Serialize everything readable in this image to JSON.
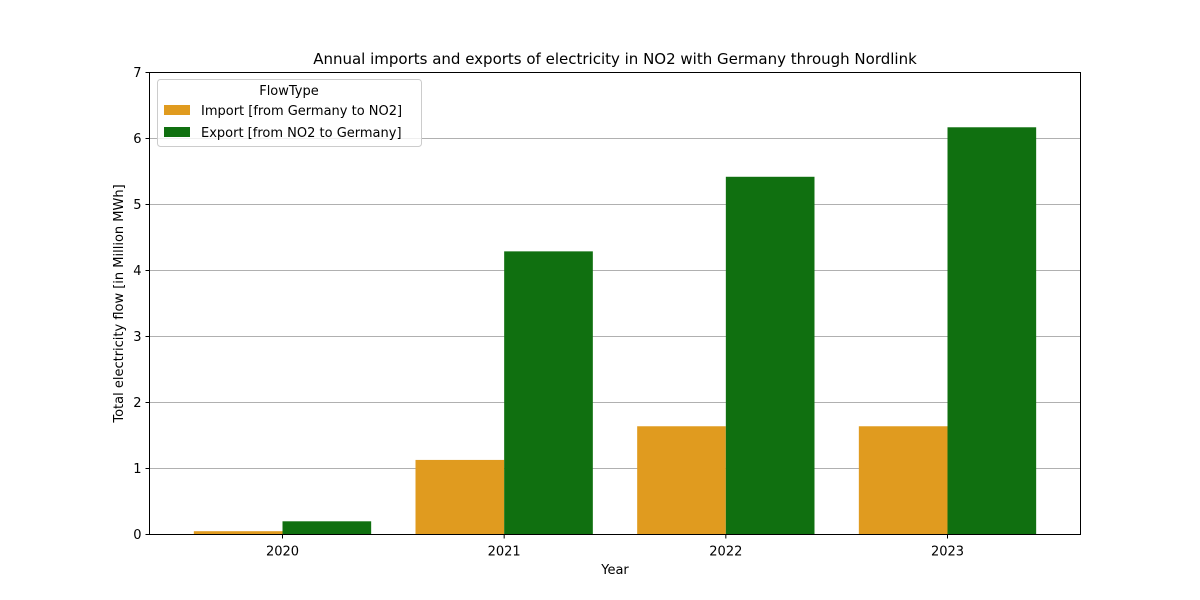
{
  "chart_data": {
    "type": "bar",
    "title": "Annual imports and exports of electricity in NO2 with Germany through Nordlink",
    "xlabel": "Year",
    "ylabel": "Total electricity flow [in Million MWh]",
    "categories": [
      "2020",
      "2021",
      "2022",
      "2023"
    ],
    "ylim": [
      0,
      7
    ],
    "yticks": [
      "0",
      "1",
      "2",
      "3",
      "4",
      "5",
      "6",
      "7"
    ],
    "grid": "horizontal",
    "legend": {
      "title": "FlowType",
      "placement": "upper-left"
    },
    "series": [
      {
        "name": "Import [from Germany to NO2]",
        "color": "#e09b1f",
        "values": [
          0.05,
          1.13,
          1.64,
          1.64
        ]
      },
      {
        "name": "Export [from NO2 to Germany]",
        "color": "#107010",
        "values": [
          0.2,
          4.29,
          5.42,
          6.17
        ]
      }
    ]
  }
}
